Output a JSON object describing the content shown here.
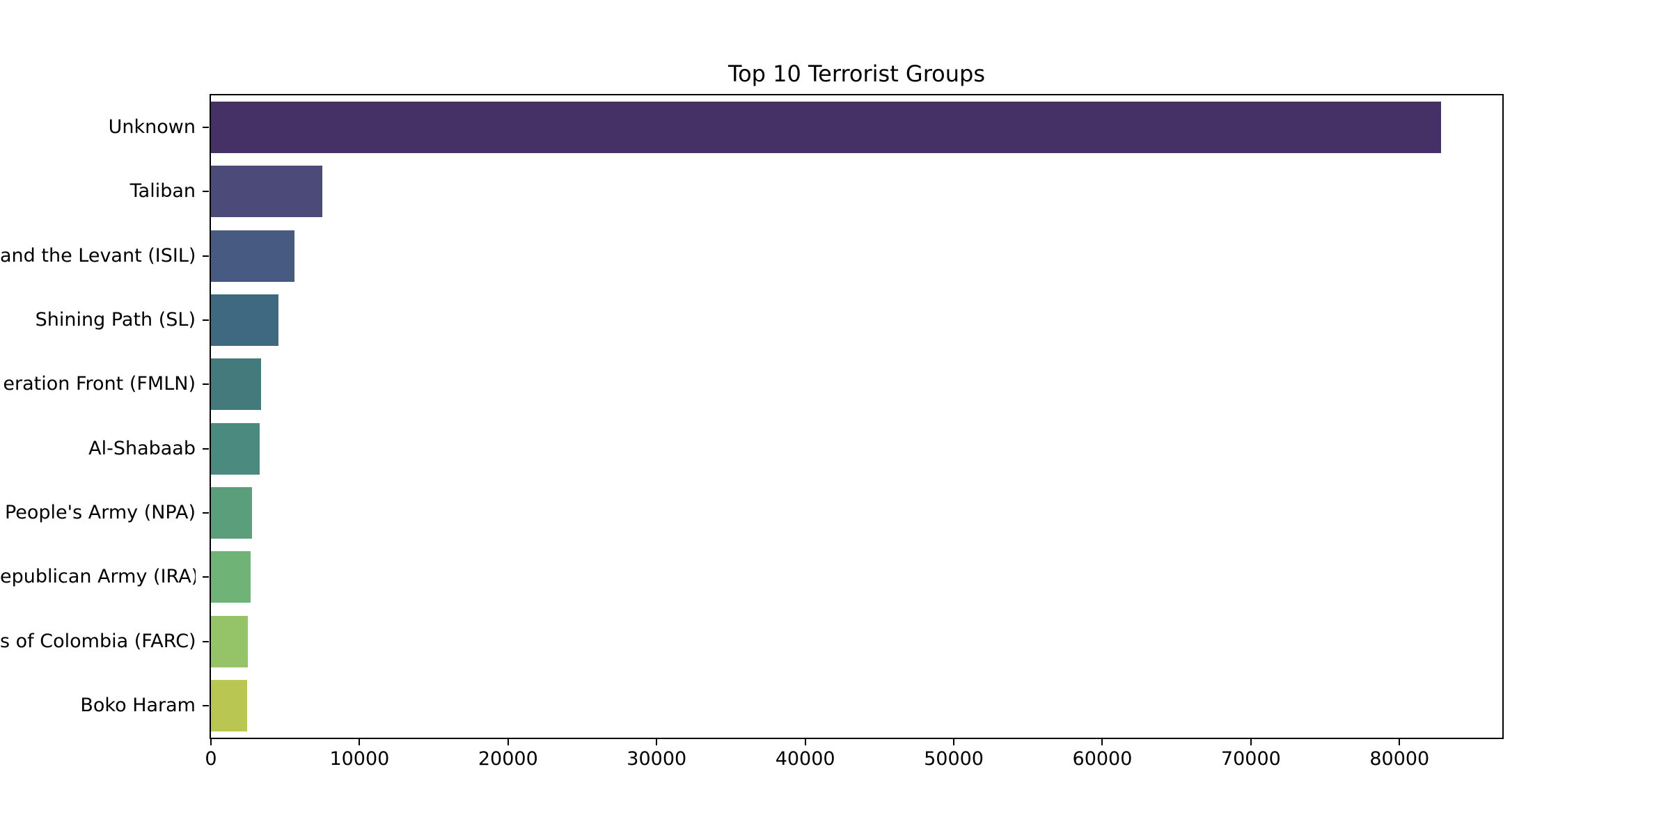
{
  "chart_data": {
    "type": "bar",
    "orientation": "horizontal",
    "title": "Top 10 Terrorist Groups",
    "xlabel": "",
    "ylabel": "",
    "categories": [
      "Unknown",
      "Taliban",
      "and the Levant (ISIL)",
      "Shining Path (SL)",
      "eration Front (FMLN)",
      "Al-Shabaab",
      "People's Army (NPA)",
      "epublican Army (IRA)",
      "s of Colombia (FARC)",
      "Boko Haram"
    ],
    "values": [
      82782,
      7478,
      5613,
      4555,
      3351,
      3288,
      2772,
      2671,
      2487,
      2418
    ],
    "bar_colors": [
      "#463167",
      "#4b4a79",
      "#475a82",
      "#3f6980",
      "#457a7c",
      "#4b8a7f",
      "#5a9e7c",
      "#6fb377",
      "#94c368",
      "#b9c752"
    ],
    "xlim": [
      0,
      86921
    ],
    "xticks": [
      0,
      10000,
      20000,
      30000,
      40000,
      50000,
      60000,
      70000,
      80000
    ],
    "xtick_labels": [
      "0",
      "10000",
      "20000",
      "30000",
      "40000",
      "50000",
      "60000",
      "70000",
      "80000"
    ],
    "grid": false,
    "legend_position": "none",
    "background_color": "#ffffff",
    "spine_color": "#000000",
    "text_color": "#000000"
  }
}
